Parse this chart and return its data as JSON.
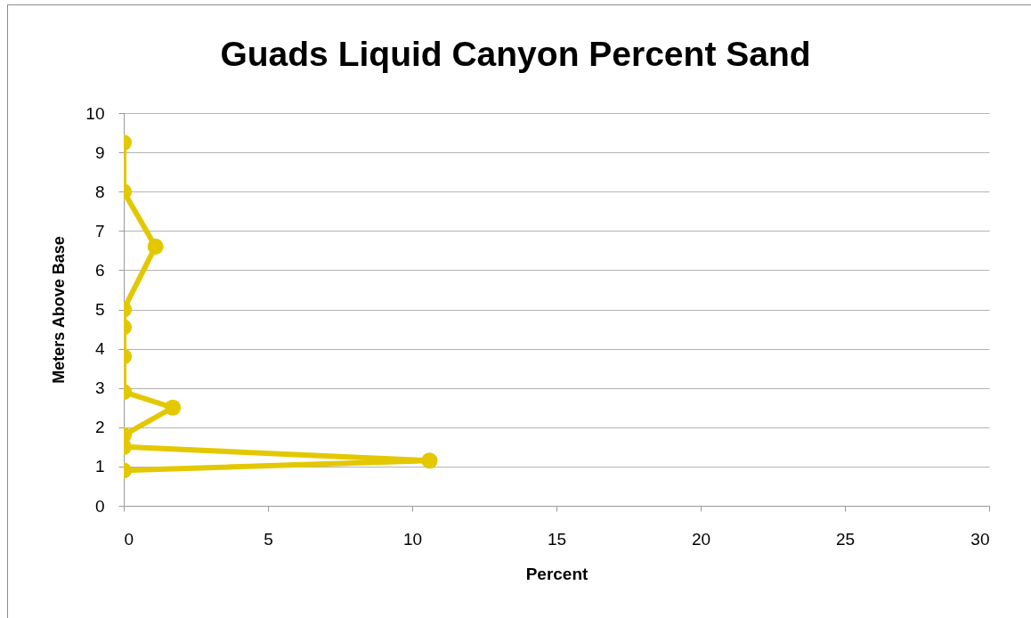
{
  "chart_data": {
    "type": "line",
    "title": "Guads Liquid Canyon Percent Sand",
    "xlabel": "Percent",
    "ylabel": "Meters Above Base",
    "series": [
      {
        "color": "#e3c800",
        "x": [
          0,
          0,
          1.1,
          0,
          0,
          0,
          0,
          1.7,
          0,
          0,
          10.6,
          0
        ],
        "values": [
          9.25,
          8.0,
          6.6,
          5.0,
          4.55,
          3.8,
          2.9,
          2.5,
          1.8,
          1.5,
          1.15,
          0.9
        ]
      }
    ],
    "xlim": [
      0,
      30
    ],
    "xticks": [
      0,
      5,
      10,
      15,
      20,
      25,
      30
    ],
    "ylim": [
      0,
      10
    ],
    "yticks": [
      0,
      1,
      2,
      3,
      4,
      5,
      6,
      7,
      8,
      9,
      10
    ],
    "grid": "y",
    "marker": "circle",
    "line_style": "solid"
  }
}
